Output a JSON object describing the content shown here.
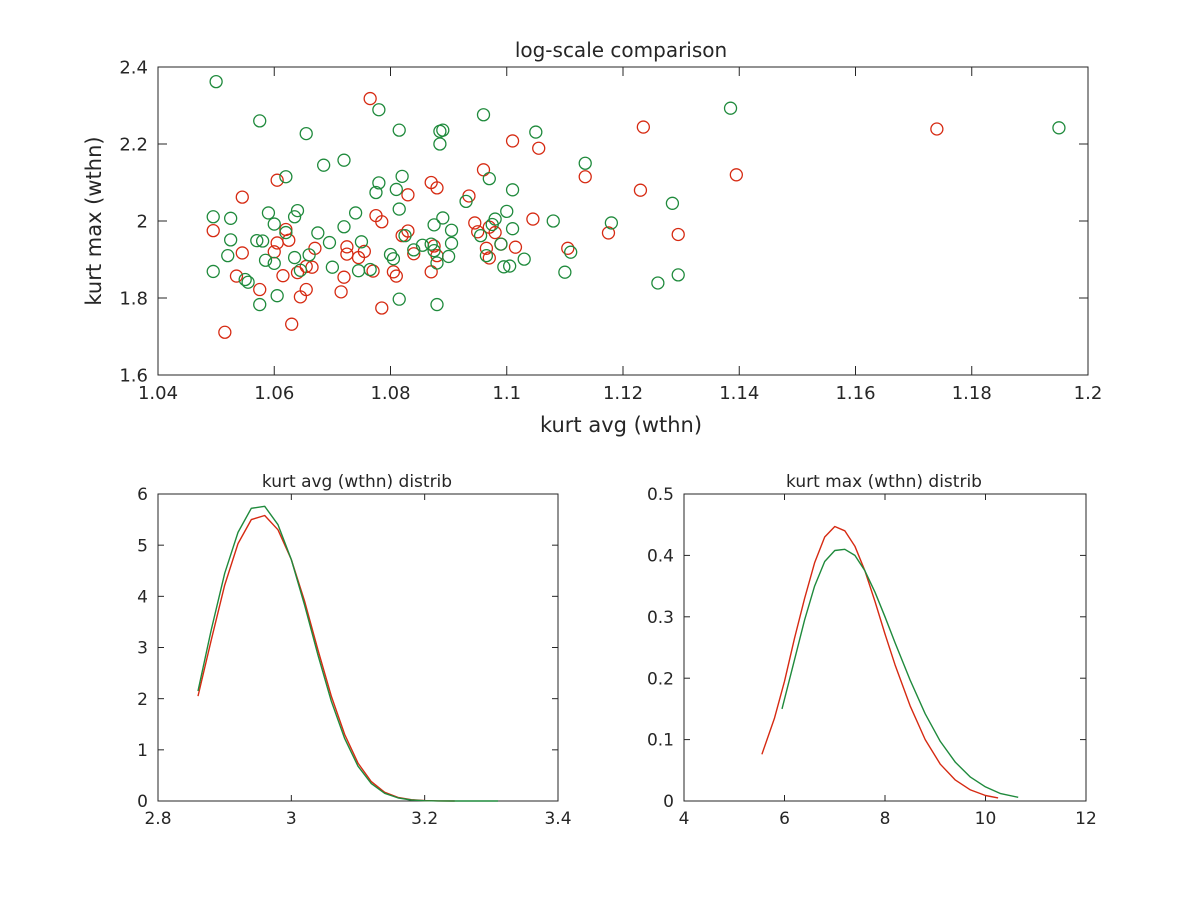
{
  "colors": {
    "red": "#d62a12",
    "green": "#1f8a3c",
    "axis": "#262626"
  },
  "chart_data": [
    {
      "type": "scatter",
      "title": "log-scale comparison",
      "xlabel": "kurt avg (wthn)",
      "ylabel": "kurt max (wthn)",
      "xlim": [
        1.04,
        1.2
      ],
      "ylim": [
        1.6,
        2.4
      ],
      "xticks": [
        1.04,
        1.06,
        1.08,
        1.1,
        1.12,
        1.14,
        1.16,
        1.18,
        1.2
      ],
      "xtick_labels": [
        "1.04",
        "1.06",
        "1.08",
        "1.1",
        "1.12",
        "1.14",
        "1.16",
        "1.18",
        "1.2"
      ],
      "yticks": [
        1.6,
        1.8,
        2.0,
        2.2,
        2.4
      ],
      "ytick_labels": [
        "1.6",
        "1.8",
        "2",
        "2.2",
        "2.4"
      ],
      "grid": false,
      "series": [
        {
          "color": "red",
          "points": [
            [
              1.0765,
              2.318
            ],
            [
              1.0605,
              2.106
            ],
            [
              1.0545,
              2.062
            ],
            [
              1.0495,
              1.975
            ],
            [
              1.0545,
              1.917
            ],
            [
              1.0535,
              1.857
            ],
            [
              1.0575,
              1.822
            ],
            [
              1.0515,
              1.711
            ],
            [
              1.063,
              1.732
            ],
            [
              1.0615,
              1.858
            ],
            [
              1.06,
              1.92
            ],
            [
              1.0605,
              1.943
            ],
            [
              1.062,
              1.978
            ],
            [
              1.0625,
              1.95
            ],
            [
              1.064,
              1.866
            ],
            [
              1.0655,
              1.882
            ],
            [
              1.0655,
              1.822
            ],
            [
              1.0645,
              1.803
            ],
            [
              1.067,
              1.929
            ],
            [
              1.0665,
              1.88
            ],
            [
              1.0715,
              1.816
            ],
            [
              1.072,
              1.854
            ],
            [
              1.0725,
              1.933
            ],
            [
              1.0725,
              1.914
            ],
            [
              1.0745,
              1.905
            ],
            [
              1.0755,
              1.921
            ],
            [
              1.0775,
              2.014
            ],
            [
              1.0785,
              1.998
            ],
            [
              1.077,
              1.87
            ],
            [
              1.0785,
              1.774
            ],
            [
              1.0805,
              1.868
            ],
            [
              1.081,
              1.857
            ],
            [
              1.082,
              1.962
            ],
            [
              1.083,
              1.974
            ],
            [
              1.083,
              2.068
            ],
            [
              1.084,
              1.915
            ],
            [
              1.087,
              2.1
            ],
            [
              1.088,
              2.086
            ],
            [
              1.0875,
              1.935
            ],
            [
              1.088,
              1.91
            ],
            [
              1.087,
              1.868
            ],
            [
              1.0935,
              2.065
            ],
            [
              1.0945,
              1.995
            ],
            [
              1.095,
              1.972
            ],
            [
              1.0965,
              1.929
            ],
            [
              1.096,
              2.133
            ],
            [
              1.097,
              1.904
            ],
            [
              1.097,
              1.984
            ],
            [
              1.098,
              1.97
            ],
            [
              1.099,
              1.94
            ],
            [
              1.101,
              2.208
            ],
            [
              1.1015,
              1.932
            ],
            [
              1.1045,
              2.005
            ],
            [
              1.1055,
              2.189
            ],
            [
              1.1105,
              1.929
            ],
            [
              1.1135,
              2.115
            ],
            [
              1.1175,
              1.969
            ],
            [
              1.123,
              2.08
            ],
            [
              1.1235,
              2.244
            ],
            [
              1.1295,
              1.965
            ],
            [
              1.1395,
              2.12
            ],
            [
              1.174,
              2.239
            ]
          ]
        },
        {
          "color": "green",
          "points": [
            [
              1.05,
              2.362
            ],
            [
              1.0575,
              2.26
            ],
            [
              1.0495,
              2.011
            ],
            [
              1.0495,
              1.869
            ],
            [
              1.0525,
              2.007
            ],
            [
              1.0525,
              1.951
            ],
            [
              1.052,
              1.91
            ],
            [
              1.0555,
              1.841
            ],
            [
              1.055,
              1.848
            ],
            [
              1.057,
              1.949
            ],
            [
              1.058,
              1.948
            ],
            [
              1.0585,
              1.898
            ],
            [
              1.0575,
              1.783
            ],
            [
              1.059,
              2.021
            ],
            [
              1.06,
              1.992
            ],
            [
              1.06,
              1.89
            ],
            [
              1.0605,
              1.806
            ],
            [
              1.062,
              2.115
            ],
            [
              1.062,
              1.97
            ],
            [
              1.0635,
              1.905
            ],
            [
              1.0635,
              2.011
            ],
            [
              1.064,
              2.027
            ],
            [
              1.0645,
              1.872
            ],
            [
              1.0655,
              2.227
            ],
            [
              1.066,
              1.912
            ],
            [
              1.0675,
              1.969
            ],
            [
              1.0685,
              2.145
            ],
            [
              1.0695,
              1.944
            ],
            [
              1.07,
              1.88
            ],
            [
              1.072,
              2.158
            ],
            [
              1.072,
              1.985
            ],
            [
              1.074,
              2.021
            ],
            [
              1.0745,
              1.871
            ],
            [
              1.075,
              1.946
            ],
            [
              1.0765,
              1.874
            ],
            [
              1.0775,
              2.074
            ],
            [
              1.078,
              2.099
            ],
            [
              1.078,
              2.289
            ],
            [
              1.08,
              1.913
            ],
            [
              1.0805,
              1.902
            ],
            [
              1.081,
              2.082
            ],
            [
              1.0815,
              2.236
            ],
            [
              1.0815,
              2.031
            ],
            [
              1.082,
              2.116
            ],
            [
              1.0815,
              1.797
            ],
            [
              1.0825,
              1.962
            ],
            [
              1.084,
              1.925
            ],
            [
              1.0855,
              1.937
            ],
            [
              1.087,
              1.94
            ],
            [
              1.0875,
              1.923
            ],
            [
              1.0875,
              1.99
            ],
            [
              1.088,
              1.891
            ],
            [
              1.088,
              1.783
            ],
            [
              1.0885,
              2.2
            ],
            [
              1.0885,
              2.233
            ],
            [
              1.089,
              2.236
            ],
            [
              1.089,
              2.008
            ],
            [
              1.09,
              1.908
            ],
            [
              1.0905,
              1.976
            ],
            [
              1.0905,
              1.942
            ],
            [
              1.093,
              2.051
            ],
            [
              1.0955,
              1.962
            ],
            [
              1.096,
              2.276
            ],
            [
              1.0965,
              1.91
            ],
            [
              1.097,
              2.11
            ],
            [
              1.0975,
              1.991
            ],
            [
              1.098,
              2.005
            ],
            [
              1.099,
              1.94
            ],
            [
              1.0995,
              1.881
            ],
            [
              1.1,
              2.025
            ],
            [
              1.1005,
              1.883
            ],
            [
              1.101,
              2.081
            ],
            [
              1.101,
              1.98
            ],
            [
              1.103,
              1.901
            ],
            [
              1.105,
              2.231
            ],
            [
              1.108,
              2.0
            ],
            [
              1.11,
              1.867
            ],
            [
              1.111,
              1.919
            ],
            [
              1.1135,
              2.15
            ],
            [
              1.118,
              1.995
            ],
            [
              1.126,
              1.839
            ],
            [
              1.1285,
              2.046
            ],
            [
              1.1295,
              1.86
            ],
            [
              1.1385,
              2.293
            ],
            [
              1.195,
              2.242
            ]
          ]
        }
      ]
    },
    {
      "type": "line",
      "title": "kurt avg (wthn) distrib",
      "xlabel": "",
      "ylabel": "",
      "xlim": [
        2.8,
        3.4
      ],
      "ylim": [
        0,
        6
      ],
      "xticks": [
        2.8,
        3.0,
        3.2,
        3.4
      ],
      "xtick_labels": [
        "2.8",
        "3",
        "3.2",
        "3.4"
      ],
      "yticks": [
        0,
        1,
        2,
        3,
        4,
        5,
        6
      ],
      "ytick_labels": [
        "0",
        "1",
        "2",
        "3",
        "4",
        "5",
        "6"
      ],
      "grid": false,
      "series": [
        {
          "color": "red",
          "x": [
            2.86,
            2.88,
            2.9,
            2.92,
            2.94,
            2.96,
            2.98,
            3.0,
            3.02,
            3.04,
            3.06,
            3.08,
            3.1,
            3.12,
            3.14,
            3.16,
            3.18,
            3.2,
            3.22,
            3.245
          ],
          "y": [
            2.05,
            3.15,
            4.22,
            5.03,
            5.5,
            5.58,
            5.3,
            4.72,
            3.9,
            2.95,
            2.05,
            1.3,
            0.74,
            0.38,
            0.17,
            0.07,
            0.025,
            0.008,
            0.002,
            0.0
          ]
        },
        {
          "color": "green",
          "x": [
            2.86,
            2.88,
            2.9,
            2.92,
            2.94,
            2.96,
            2.98,
            3.0,
            3.02,
            3.04,
            3.06,
            3.08,
            3.1,
            3.12,
            3.14,
            3.16,
            3.18,
            3.2,
            3.22,
            3.24,
            3.27,
            3.31
          ],
          "y": [
            2.15,
            3.35,
            4.45,
            5.25,
            5.72,
            5.76,
            5.4,
            4.72,
            3.82,
            2.85,
            1.95,
            1.22,
            0.68,
            0.34,
            0.15,
            0.06,
            0.02,
            0.006,
            0.002,
            0.0005,
            0.0,
            0.0
          ]
        }
      ]
    },
    {
      "type": "line",
      "title": "kurt max (wthn) distrib",
      "xlabel": "",
      "ylabel": "",
      "xlim": [
        4,
        12
      ],
      "ylim": [
        0,
        0.5
      ],
      "xticks": [
        4,
        6,
        8,
        10,
        12
      ],
      "xtick_labels": [
        "4",
        "6",
        "8",
        "10",
        "12"
      ],
      "yticks": [
        0,
        0.1,
        0.2,
        0.3,
        0.4,
        0.5
      ],
      "ytick_labels": [
        "0",
        "0.1",
        "0.2",
        "0.3",
        "0.4",
        "0.5"
      ],
      "grid": false,
      "series": [
        {
          "color": "red",
          "x": [
            5.55,
            5.8,
            6.0,
            6.2,
            6.4,
            6.6,
            6.8,
            7.0,
            7.2,
            7.4,
            7.6,
            7.8,
            8.0,
            8.2,
            8.5,
            8.8,
            9.1,
            9.4,
            9.7,
            10.0,
            10.25
          ],
          "y": [
            0.076,
            0.135,
            0.195,
            0.265,
            0.33,
            0.388,
            0.43,
            0.447,
            0.44,
            0.415,
            0.375,
            0.325,
            0.272,
            0.222,
            0.155,
            0.1,
            0.06,
            0.034,
            0.018,
            0.009,
            0.005
          ]
        },
        {
          "color": "green",
          "x": [
            5.95,
            6.2,
            6.4,
            6.6,
            6.8,
            7.0,
            7.2,
            7.4,
            7.6,
            7.8,
            8.0,
            8.2,
            8.5,
            8.8,
            9.1,
            9.4,
            9.7,
            10.0,
            10.3,
            10.65
          ],
          "y": [
            0.15,
            0.23,
            0.295,
            0.35,
            0.39,
            0.408,
            0.41,
            0.4,
            0.375,
            0.34,
            0.3,
            0.258,
            0.197,
            0.142,
            0.097,
            0.063,
            0.039,
            0.023,
            0.012,
            0.006
          ]
        }
      ]
    }
  ]
}
